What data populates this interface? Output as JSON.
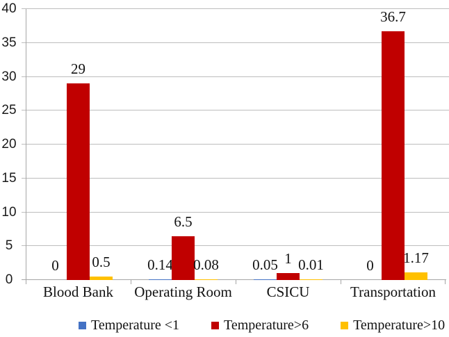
{
  "chart_data": {
    "type": "bar",
    "title": "",
    "xlabel": "",
    "ylabel": "",
    "categories": [
      "Blood Bank",
      "Operating Room",
      "CSICU",
      "Transportation"
    ],
    "series": [
      {
        "name": "Temperature <1",
        "color": "#4472C4",
        "values": [
          0,
          0.14,
          0.05,
          0
        ]
      },
      {
        "name": "Temperature>6",
        "color": "#C00000",
        "values": [
          29,
          6.5,
          1,
          36.7
        ]
      },
      {
        "name": "Temperature>10",
        "color": "#FFC000",
        "values": [
          0.5,
          0.08,
          0.01,
          1.17
        ]
      }
    ],
    "data_labels": [
      [
        "0",
        "29",
        "0.5"
      ],
      [
        "0.14",
        "6.5",
        "0.08"
      ],
      [
        "0.05",
        "1",
        "0.01"
      ],
      [
        "0",
        "36.7",
        "1.17"
      ]
    ],
    "y_ticks": [
      0,
      5,
      10,
      15,
      20,
      25,
      30,
      35,
      40
    ],
    "ylim": [
      0,
      40
    ],
    "grid": true,
    "legend_position": "bottom",
    "axis_color": "#a6a6a6",
    "gridline_color": "#bdbdbd"
  }
}
